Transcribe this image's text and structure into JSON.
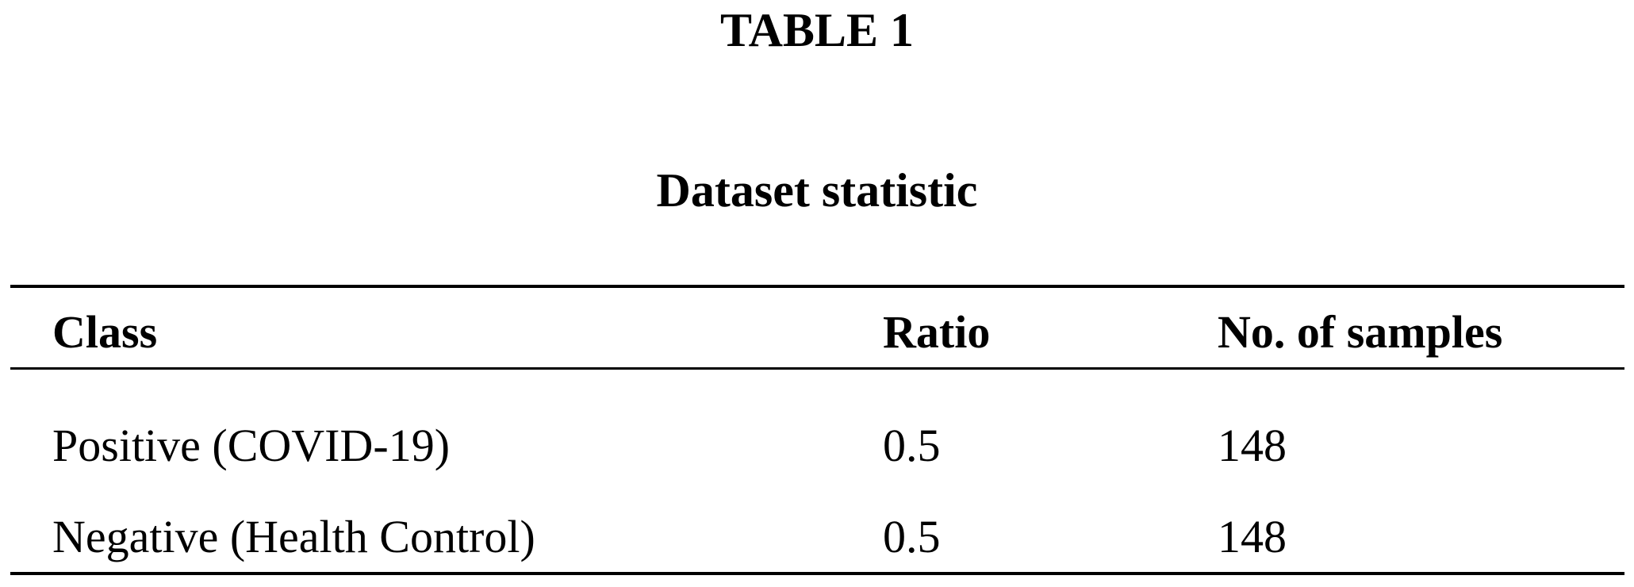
{
  "header": {
    "title": "TABLE 1",
    "subtitle": "Dataset statistic"
  },
  "table": {
    "columns": [
      "Class",
      "Ratio",
      "No. of samples"
    ],
    "rows": [
      [
        "Positive (COVID-19)",
        0.5,
        148
      ],
      [
        "Negative (Health Control)",
        0.5,
        148
      ]
    ]
  }
}
